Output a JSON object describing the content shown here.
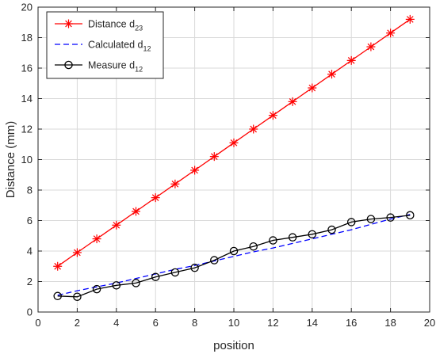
{
  "chart_data": {
    "type": "line",
    "xlabel": "position",
    "ylabel": "Distance (mm)",
    "xlim": [
      0,
      20
    ],
    "ylim": [
      0,
      20
    ],
    "xticks": [
      0,
      2,
      4,
      6,
      8,
      10,
      12,
      14,
      16,
      18,
      20
    ],
    "yticks": [
      0,
      2,
      4,
      6,
      8,
      10,
      12,
      14,
      16,
      18,
      20
    ],
    "grid": true,
    "legend_position": "top-left",
    "x": [
      1,
      2,
      3,
      4,
      5,
      6,
      7,
      8,
      9,
      10,
      11,
      12,
      13,
      14,
      15,
      16,
      17,
      18,
      19
    ],
    "series": [
      {
        "name": "Distance d",
        "name_subscript": "23",
        "color": "#ff0000",
        "line_style": "solid",
        "marker": "asterisk",
        "values": [
          3.0,
          3.9,
          4.8,
          5.7,
          6.6,
          7.5,
          8.4,
          9.3,
          10.2,
          11.1,
          12.0,
          12.9,
          13.8,
          14.7,
          15.6,
          16.5,
          17.4,
          18.3,
          19.2
        ]
      },
      {
        "name": "Calculated d",
        "name_subscript": "12",
        "color": "#0000ff",
        "line_style": "dashed",
        "marker": "none",
        "values": [
          1.1,
          1.4,
          1.65,
          1.9,
          2.2,
          2.5,
          2.8,
          3.05,
          3.35,
          3.65,
          3.95,
          4.2,
          4.5,
          4.8,
          5.1,
          5.4,
          5.75,
          6.1,
          6.4
        ]
      },
      {
        "name": "Measure d",
        "name_subscript": "12",
        "color": "#000000",
        "line_style": "solid",
        "marker": "circle",
        "values": [
          1.05,
          1.0,
          1.5,
          1.75,
          1.9,
          2.3,
          2.6,
          2.9,
          3.4,
          4.0,
          4.3,
          4.7,
          4.9,
          5.1,
          5.4,
          5.9,
          6.1,
          6.2,
          6.35
        ]
      }
    ]
  }
}
